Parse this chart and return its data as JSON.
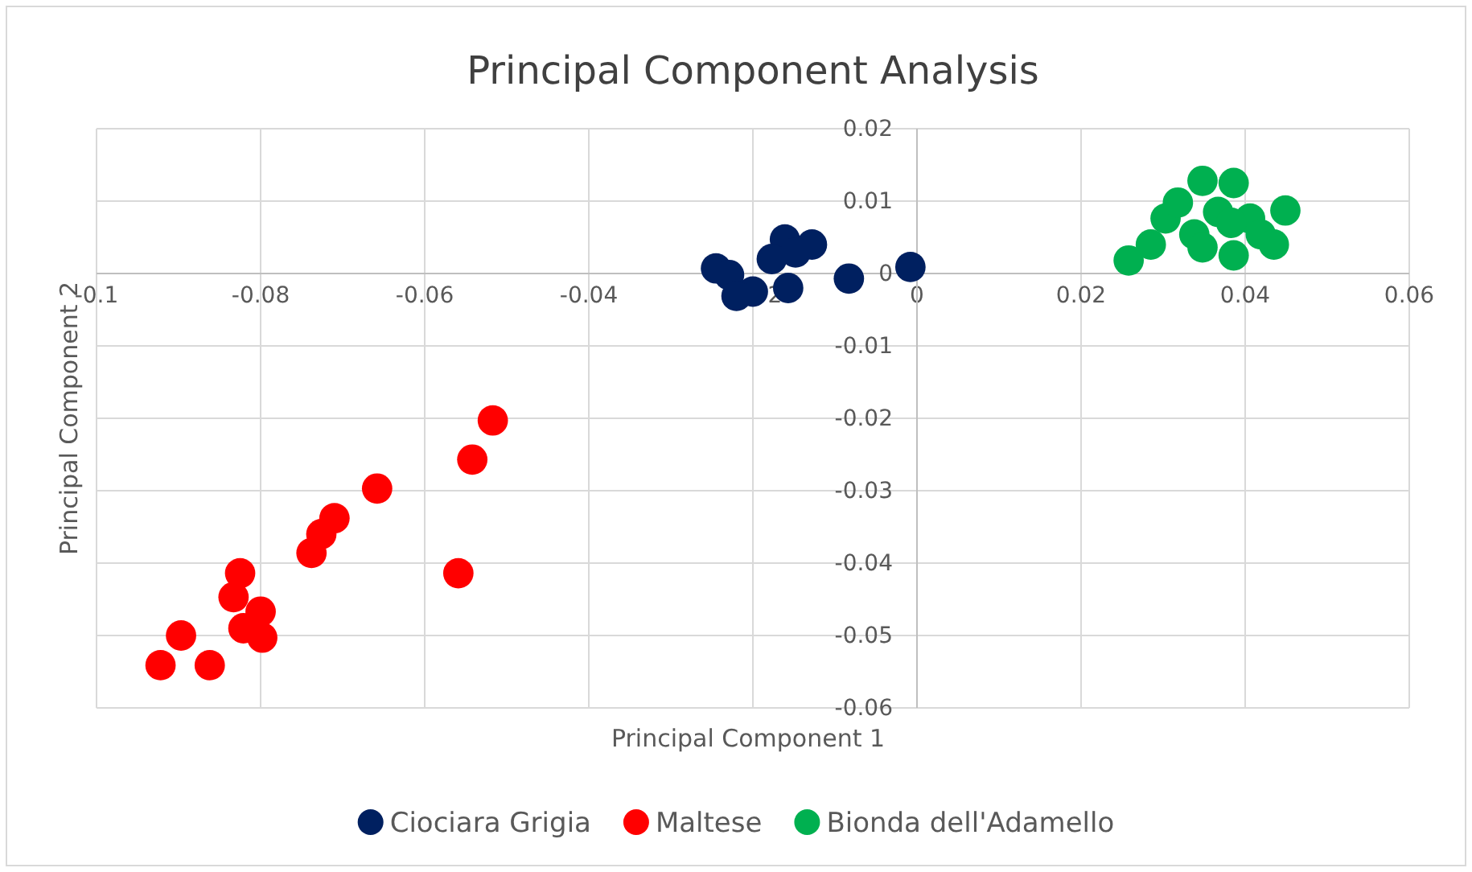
{
  "chart_data": {
    "type": "scatter",
    "title": "Principal Component Analysis",
    "xlabel": "Principal Component 1",
    "ylabel": "Principal Component 2",
    "xlim": [
      -0.1,
      0.06
    ],
    "ylim": [
      -0.06,
      0.02
    ],
    "xticks": [
      {
        "value": -0.1,
        "label": "-0.1"
      },
      -0.08,
      -0.06,
      -0.04,
      -0.02,
      0,
      0.02,
      0.04,
      0.06
    ],
    "yticks": [
      -0.06,
      -0.05,
      -0.04,
      -0.03,
      -0.02,
      -0.01,
      0,
      0.01,
      0.02
    ],
    "grid": true,
    "legend": "bottom",
    "marker": "circle",
    "series": [
      {
        "name": "Ciociara Grigia",
        "color": "#002060",
        "x": [
          -0.0245,
          -0.0229,
          -0.02,
          -0.022,
          -0.0161,
          -0.0128,
          -0.0157,
          -0.0083,
          -0.0008,
          -0.0177,
          -0.0148
        ],
        "values": [
          0.0007,
          -0.0002,
          -0.0025,
          -0.0031,
          0.0047,
          0.004,
          -0.002,
          -0.0007,
          0.0009,
          0.002,
          0.0029
        ]
      },
      {
        "name": "Maltese",
        "color": "#ff0000",
        "x": [
          -0.0517,
          -0.0542,
          -0.0658,
          -0.071,
          -0.0726,
          -0.0738,
          -0.0559,
          -0.0825,
          -0.0833,
          -0.08,
          -0.0821,
          -0.0798,
          -0.0897,
          -0.0922,
          -0.0862
        ],
        "values": [
          -0.0203,
          -0.0257,
          -0.0297,
          -0.0338,
          -0.036,
          -0.0386,
          -0.0414,
          -0.0414,
          -0.0447,
          -0.0467,
          -0.049,
          -0.0503,
          -0.05,
          -0.0541,
          -0.0541
        ]
      },
      {
        "name": "Bionda dell'Adamello",
        "color": "#00b050",
        "x": [
          0.0258,
          0.0285,
          0.0303,
          0.0318,
          0.0348,
          0.0386,
          0.0367,
          0.0338,
          0.0348,
          0.0386,
          0.0406,
          0.0419,
          0.0435,
          0.0449,
          0.0383
        ],
        "values": [
          0.0018,
          0.004,
          0.0076,
          0.0098,
          0.0128,
          0.0125,
          0.0085,
          0.0054,
          0.0036,
          0.0025,
          0.0076,
          0.0054,
          0.004,
          0.0087,
          0.007
        ]
      }
    ]
  }
}
